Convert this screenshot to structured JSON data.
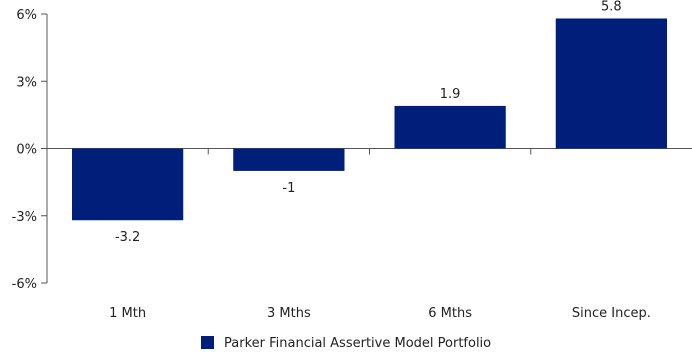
{
  "chart_data": {
    "type": "bar",
    "categories": [
      "1 Mth",
      "3 Mths",
      "6 Mths",
      "Since Incep."
    ],
    "series": [
      {
        "name": "Parker Financial Assertive Model Portfolio",
        "values": [
          -3.2,
          -1,
          1.9,
          5.8
        ],
        "data_labels": [
          "-3.2",
          "-1",
          "1.9",
          "5.8"
        ]
      }
    ],
    "y_ticks": [
      6,
      3,
      0,
      -3,
      -6
    ],
    "y_tick_labels": [
      "6%",
      "3%",
      "0%",
      "-3%",
      "-6%"
    ],
    "ylim": [
      -6,
      6
    ],
    "title": "",
    "xlabel": "",
    "ylabel": "",
    "grid": false,
    "legend_position": "bottom",
    "bar_color": "#001f7a",
    "axis_color": "#555555"
  }
}
